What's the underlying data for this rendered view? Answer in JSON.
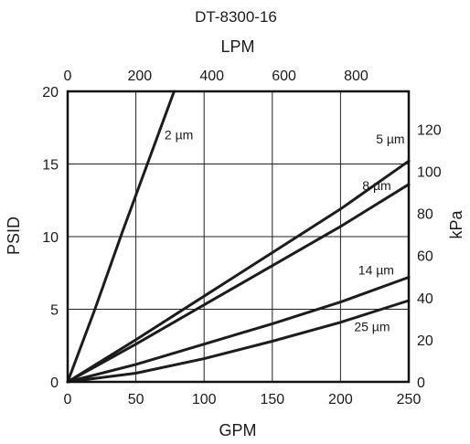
{
  "chart_data": {
    "type": "line",
    "title": "DT-8300-16",
    "xlabel": "GPM",
    "ylabel": "PSID",
    "x2label": "LPM",
    "y2label": "kPa",
    "xlim": [
      0,
      250
    ],
    "ylim": [
      0,
      20
    ],
    "x2lim": [
      0,
      946
    ],
    "y2lim": [
      0,
      137.9
    ],
    "grid": true,
    "xticks": [
      0,
      50,
      100,
      150,
      200,
      250
    ],
    "yticks": [
      0,
      5,
      10,
      15,
      20
    ],
    "x2ticks": [
      0,
      200,
      400,
      600,
      800
    ],
    "y2ticks": [
      0,
      20,
      40,
      60,
      80,
      100,
      120
    ],
    "series": [
      {
        "name": "2 µm",
        "x": [
          0,
          20,
          40,
          60,
          80
        ],
        "y": [
          0,
          5,
          10.3,
          15.4,
          20.5
        ]
      },
      {
        "name": "5 µm",
        "x": [
          0,
          50,
          100,
          150,
          200,
          250
        ],
        "y": [
          0,
          2.9,
          5.9,
          8.9,
          11.9,
          15.2
        ]
      },
      {
        "name": "8 µm",
        "x": [
          0,
          50,
          100,
          150,
          200,
          250
        ],
        "y": [
          0,
          2.6,
          5.3,
          8.0,
          10.7,
          13.6
        ]
      },
      {
        "name": "14 µm",
        "x": [
          0,
          50,
          100,
          150,
          200,
          250
        ],
        "y": [
          0,
          1.2,
          2.6,
          4.0,
          5.5,
          7.2
        ]
      },
      {
        "name": "25 µm",
        "x": [
          0,
          50,
          100,
          150,
          200,
          250
        ],
        "y": [
          0,
          0.6,
          1.6,
          2.8,
          4.1,
          5.6
        ]
      }
    ],
    "annotations": [
      {
        "text": "2 µm",
        "x": 71,
        "y": 16.7
      },
      {
        "text": "5 µm",
        "x": 226,
        "y": 16.4
      },
      {
        "text": "8 µm",
        "x": 216,
        "y": 13.2
      },
      {
        "text": "14 µm",
        "x": 213,
        "y": 7.4
      },
      {
        "text": "25 µm",
        "x": 210,
        "y": 3.5
      }
    ]
  }
}
